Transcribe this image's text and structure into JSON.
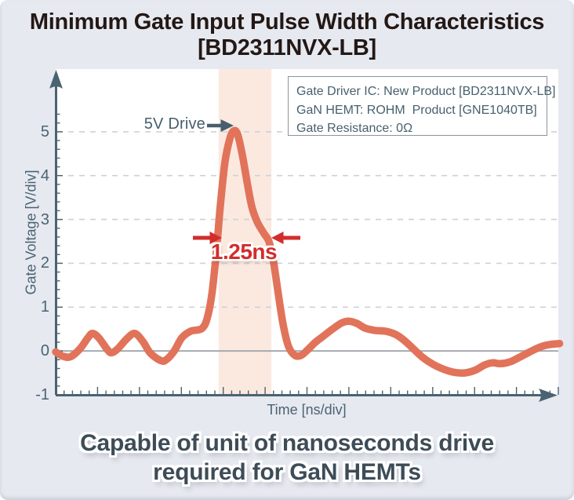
{
  "title": {
    "line1": "Minimum Gate Input Pulse Width Characteristics",
    "line2": "[BD2311NVX-LB]"
  },
  "legend": {
    "lines": [
      "Gate Driver IC: New Product [BD2311NVX-LB]",
      "GaN HEMT: ROHM  Product [GNE1040TB]",
      "Gate Resistance: 0Ω"
    ]
  },
  "caption": {
    "line1": "Capable of unit of nanoseconds drive",
    "line2": "required for GaN HEMTs"
  },
  "colors": {
    "background": "#E7E9F0",
    "plot_background": "#FFFFFF",
    "title_color": "#231815",
    "axis_color": "#4A6372",
    "waveform": "#E1735A",
    "band": "#FBE9E0",
    "accent_red": "#D22D2D",
    "grid_color": "#CDD2D6",
    "zero_line": "#A5AAAF",
    "caption_color": "#3D4C57",
    "legend_text": "#47606E"
  },
  "chart_data": {
    "type": "line",
    "title": "Minimum Gate Input Pulse Width Characteristics [BD2311NVX-LB]",
    "xlabel": "Time [ns/div]",
    "ylabel": "Gate Voltage [V/div]",
    "ylim": [
      -1,
      6.43
    ],
    "y_ticks": [
      5,
      4,
      3,
      2,
      1,
      0,
      -1
    ],
    "x_divisions": 12,
    "minor_per_division": 5,
    "grid": "horizontal-dashed",
    "legend_position": "top-right",
    "highlight_band_div": [
      3.89,
      5.15
    ],
    "pulse": {
      "peak_label": "5V Drive",
      "peak_v": 5.0,
      "width_label": "1.25ns",
      "width_ns": 1.25,
      "measure_level_v": 2.58
    },
    "series": [
      {
        "name": "Gate Voltage",
        "color": "#E1735A",
        "points_div_v": [
          [
            0,
            -0.02
          ],
          [
            0.17,
            -0.12
          ],
          [
            0.36,
            -0.13
          ],
          [
            0.58,
            0.05
          ],
          [
            0.77,
            0.3
          ],
          [
            0.88,
            0.4
          ],
          [
            1.03,
            0.3
          ],
          [
            1.22,
            0.05
          ],
          [
            1.33,
            -0.04
          ],
          [
            1.48,
            0.05
          ],
          [
            1.7,
            0.28
          ],
          [
            1.89,
            0.4
          ],
          [
            2.08,
            0.22
          ],
          [
            2.26,
            -0.05
          ],
          [
            2.51,
            -0.22
          ],
          [
            2.64,
            -0.2
          ],
          [
            2.83,
            0.0
          ],
          [
            3.01,
            0.3
          ],
          [
            3.22,
            0.45
          ],
          [
            3.39,
            0.48
          ],
          [
            3.5,
            0.52
          ],
          [
            3.61,
            0.72
          ],
          [
            3.73,
            1.3
          ],
          [
            3.84,
            2.3
          ],
          [
            3.93,
            3.3
          ],
          [
            4.04,
            4.3
          ],
          [
            4.16,
            4.85
          ],
          [
            4.25,
            5.02
          ],
          [
            4.34,
            4.95
          ],
          [
            4.45,
            4.5
          ],
          [
            4.57,
            3.85
          ],
          [
            4.68,
            3.3
          ],
          [
            4.81,
            2.95
          ],
          [
            4.96,
            2.7
          ],
          [
            5.09,
            2.5
          ],
          [
            5.19,
            2.1
          ],
          [
            5.3,
            1.4
          ],
          [
            5.43,
            0.6
          ],
          [
            5.56,
            0.1
          ],
          [
            5.71,
            -0.1
          ],
          [
            5.86,
            -0.1
          ],
          [
            6.01,
            0.02
          ],
          [
            6.2,
            0.2
          ],
          [
            6.38,
            0.33
          ],
          [
            6.61,
            0.5
          ],
          [
            6.83,
            0.64
          ],
          [
            7.0,
            0.68
          ],
          [
            7.19,
            0.63
          ],
          [
            7.39,
            0.52
          ],
          [
            7.62,
            0.47
          ],
          [
            7.88,
            0.45
          ],
          [
            8.11,
            0.38
          ],
          [
            8.31,
            0.25
          ],
          [
            8.54,
            0.05
          ],
          [
            8.74,
            -0.13
          ],
          [
            9.0,
            -0.3
          ],
          [
            9.27,
            -0.42
          ],
          [
            9.53,
            -0.49
          ],
          [
            9.77,
            -0.5
          ],
          [
            10.01,
            -0.44
          ],
          [
            10.24,
            -0.32
          ],
          [
            10.43,
            -0.27
          ],
          [
            10.61,
            -0.29
          ],
          [
            10.84,
            -0.25
          ],
          [
            11.06,
            -0.15
          ],
          [
            11.32,
            -0.02
          ],
          [
            11.59,
            0.1
          ],
          [
            11.81,
            0.15
          ],
          [
            12.03,
            0.17
          ]
        ]
      }
    ]
  }
}
